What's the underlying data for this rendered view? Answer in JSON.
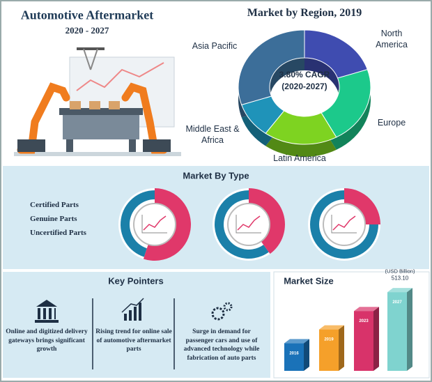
{
  "header": {
    "title": "Automotive Aftermarket",
    "period": "2020 - 2027"
  },
  "region_chart": {
    "type": "pie",
    "title": "Market by Region, 2019",
    "center_lines": [
      "3.80% CAGR",
      "(2020-2027)"
    ],
    "categories": [
      "North America",
      "Europe",
      "Latin America",
      "Middle East & Africa",
      "Asia Pacific"
    ],
    "values": [
      20,
      22,
      18,
      10,
      30
    ],
    "colors": [
      "#3f4cb0",
      "#1cc98b",
      "#7ed321",
      "#1f93b9",
      "#3c6e99"
    ]
  },
  "type_chart": {
    "type": "donut",
    "title": "Market By Type",
    "categories": [
      "Certified Parts",
      "Genuine Parts",
      "Uncertified Parts"
    ],
    "values": [
      55,
      40,
      25
    ],
    "color": "#e0386a",
    "rest_color": "#1b80a9"
  },
  "key_pointers": {
    "title": "Key Pointers",
    "items": [
      "Online and digitized delivery gateways brings significant growth",
      "Rising trend for online sale of automotive aftermarket parts",
      "Surge in demand for passenger cars and use of advanced technology while fabrication of auto parts"
    ]
  },
  "market_size": {
    "type": "bar",
    "title": "Market Size",
    "unit": "(USD Billion)",
    "categories": [
      "2016",
      "2019",
      "2023",
      "2027"
    ],
    "values": [
      180,
      270,
      390,
      513.1
    ],
    "value_labels": [
      null,
      null,
      null,
      "513.10"
    ],
    "colors": [
      "#1a72b8",
      "#f5a02a",
      "#d8336a",
      "#7fd3cf"
    ]
  }
}
